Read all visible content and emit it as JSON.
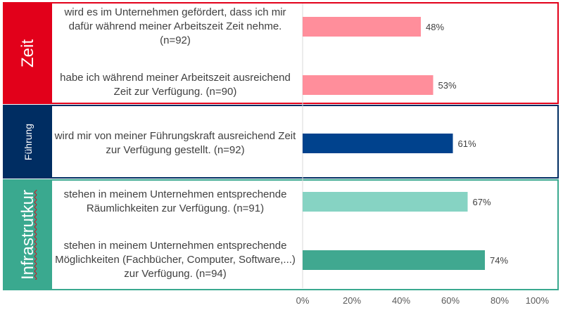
{
  "groups": [
    {
      "label": "Zeit",
      "color": "#e2001a"
    },
    {
      "label": "Führung",
      "color": "#002d62"
    },
    {
      "label": "Infrastrutkur",
      "color": "#3aa98f"
    }
  ],
  "chart_data": {
    "type": "bar",
    "orientation": "horizontal",
    "categories": [
      "wird es im Unternehmen gefördert, dass ich mir dafür während meiner Arbeitszeit Zeit nehme. (n=92)",
      "habe ich während meiner Arbeitszeit ausreichend Zeit zur Verfügung. (n=90)",
      "wird mir von meiner Führungskraft ausreichend Zeit zur Verfügung gestellt. (n=92)",
      "stehen in meinem Unternehmen entsprechende Räumlichkeiten zur Verfügung. (n=91)",
      "stehen in meinem Unternehmen entsprechende Möglichkeiten (Fachbücher, Computer, Software,...) zur Verfügung. (n=94)"
    ],
    "values": [
      48,
      53,
      61,
      67,
      74
    ],
    "data_labels": [
      "48%",
      "53%",
      "61%",
      "67%",
      "74%"
    ],
    "bar_colors": [
      "#ff8e9b",
      "#ff8e9b",
      "#00428d",
      "#86d3c3",
      "#40a890"
    ],
    "xlim": [
      0,
      100
    ],
    "x_ticks": [
      "0%",
      "20%",
      "40%",
      "60%",
      "80%",
      "100%"
    ],
    "grid": false,
    "legend": "none"
  }
}
